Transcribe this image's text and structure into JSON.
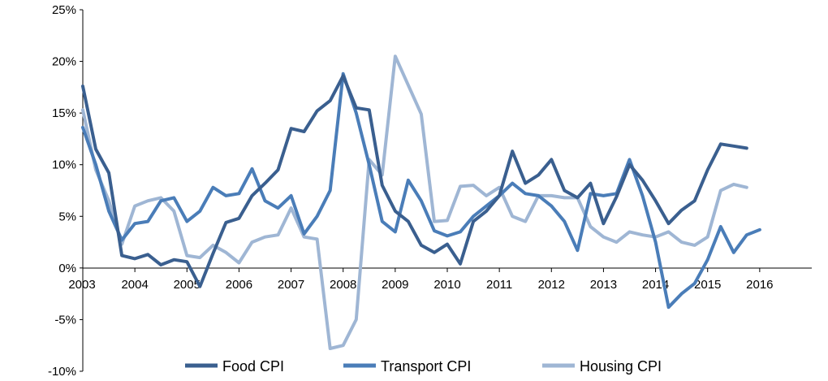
{
  "chart_data": {
    "type": "line",
    "title": "",
    "xlabel": "",
    "ylabel": "",
    "x_start": 2003.0,
    "x_step": 0.25,
    "xlim": [
      2003.0,
      2017.0
    ],
    "ylim": [
      -10,
      25
    ],
    "x_ticks": [
      "2003",
      "2004",
      "2005",
      "2006",
      "2007",
      "2008",
      "2009",
      "2010",
      "2011",
      "2012",
      "2013",
      "2014",
      "2015",
      "2016"
    ],
    "y_ticks": [
      "-10%",
      "-5%",
      "0%",
      "5%",
      "10%",
      "15%",
      "20%",
      "25%"
    ],
    "grid": false,
    "legend_position": "bottom",
    "series": [
      {
        "name": "Food CPI",
        "color": "#3A5F8F",
        "values": [
          17.6,
          11.5,
          9.2,
          1.2,
          0.9,
          1.3,
          0.3,
          0.8,
          0.6,
          -1.8,
          1.4,
          4.4,
          4.8,
          7.0,
          8.2,
          9.5,
          13.5,
          13.2,
          15.2,
          16.2,
          18.6,
          15.5,
          15.3,
          8.0,
          5.5,
          4.5,
          2.2,
          1.5,
          2.3,
          0.4,
          4.5,
          5.5,
          7.0,
          11.3,
          8.2,
          9.0,
          10.5,
          7.5,
          6.8,
          8.2,
          4.3,
          6.9,
          10.0,
          8.5,
          6.5,
          4.3,
          5.6,
          6.5,
          9.5,
          12.0,
          11.8,
          11.6
        ]
      },
      {
        "name": "Transport CPI",
        "color": "#4A7DB8",
        "values": [
          13.6,
          10.0,
          5.5,
          2.7,
          4.3,
          4.5,
          6.5,
          6.8,
          4.5,
          5.5,
          7.8,
          7.0,
          7.2,
          9.6,
          6.5,
          5.8,
          7.0,
          3.3,
          5.0,
          7.5,
          18.8,
          15.0,
          10.0,
          4.5,
          3.5,
          8.5,
          6.5,
          3.6,
          3.1,
          3.5,
          5.0,
          6.0,
          7.0,
          8.2,
          7.2,
          7.0,
          6.0,
          4.5,
          1.7,
          7.2,
          7.0,
          7.2,
          10.5,
          7.0,
          2.5,
          -3.8,
          -2.5,
          -1.5,
          0.8,
          4.0,
          1.5,
          3.2,
          3.7
        ]
      },
      {
        "name": "Housing CPI",
        "color": "#9FB6D4",
        "values": [
          15.3,
          9.5,
          6.5,
          2.3,
          6.0,
          6.5,
          6.8,
          5.5,
          1.2,
          1.0,
          2.2,
          1.5,
          0.5,
          2.5,
          3.0,
          3.2,
          5.8,
          3.0,
          2.8,
          -7.8,
          -7.5,
          -5.0,
          10.5,
          9.0,
          20.5,
          17.7,
          14.9,
          4.5,
          4.6,
          7.9,
          8.0,
          7.0,
          7.8,
          5.0,
          4.5,
          7.0,
          7.0,
          6.8,
          6.8,
          4.0,
          3.0,
          2.5,
          3.5,
          3.2,
          3.0,
          3.5,
          2.5,
          2.2,
          3.0,
          7.5,
          8.1,
          7.8
        ]
      }
    ]
  }
}
